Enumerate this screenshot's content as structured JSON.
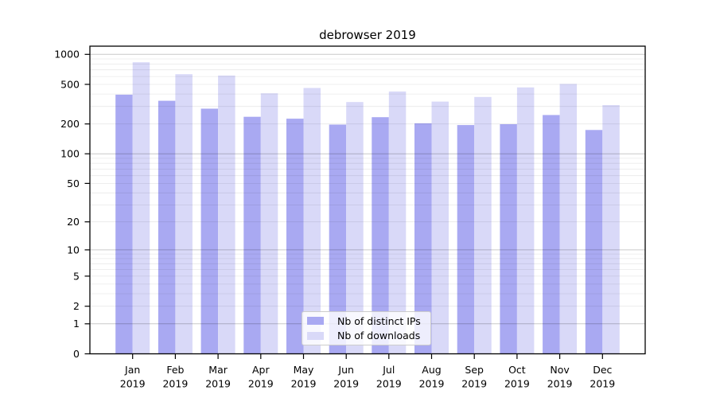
{
  "chart_data": {
    "type": "bar",
    "title": "debrowser 2019",
    "categories": [
      "Jan 2019",
      "Feb 2019",
      "Mar 2019",
      "Apr 2019",
      "May 2019",
      "Jun 2019",
      "Jul 2019",
      "Aug 2019",
      "Sep 2019",
      "Oct 2019",
      "Nov 2019",
      "Dec 2019"
    ],
    "series": [
      {
        "name": "Nb of distinct IPs",
        "color": "#a9a9f2",
        "values": [
          394,
          342,
          285,
          236,
          226,
          197,
          234,
          203,
          195,
          199,
          246,
          174
        ]
      },
      {
        "name": "Nb of downloads",
        "color": "#d9d9f8",
        "values": [
          833,
          633,
          613,
          407,
          460,
          332,
          424,
          336,
          374,
          466,
          505,
          310
        ]
      }
    ],
    "yscale": "log1p",
    "yticks": [
      0,
      1,
      2,
      5,
      10,
      20,
      50,
      100,
      200,
      500,
      1000
    ],
    "ylim": [
      0,
      1230
    ],
    "xlabel": "",
    "ylabel": "",
    "grid": {
      "major": [
        1,
        10,
        100,
        1000
      ],
      "minor_decades": [
        1,
        10,
        100
      ],
      "minor_per_decade": [
        2,
        3,
        4,
        5,
        6,
        7,
        8,
        9
      ]
    },
    "legend_position": "inside-bottom-center"
  },
  "colors": {
    "frame": "#000000",
    "background": "#ffffff",
    "bar_ips": "#a9a9f2",
    "bar_downloads": "#d9d9f8"
  }
}
